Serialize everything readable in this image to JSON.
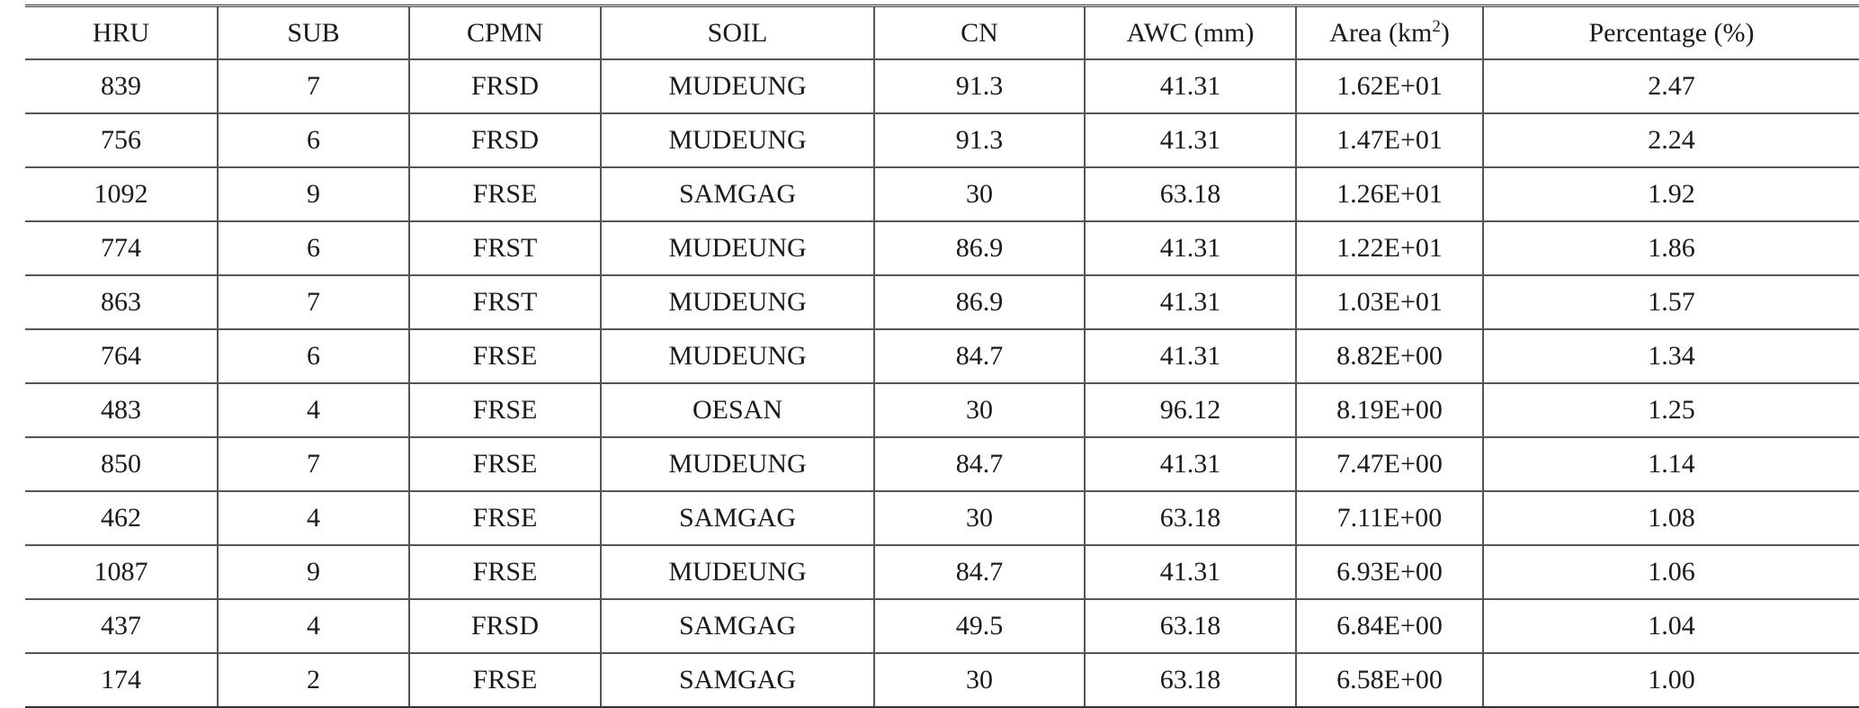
{
  "table": {
    "headers": {
      "hru": "HRU",
      "sub": "SUB",
      "cpmn": "CPMN",
      "soil": "SOIL",
      "cn": "CN",
      "awc": "AWC (mm)",
      "area_prefix": "Area (km",
      "area_sup": "2",
      "area_suffix": ")",
      "percentage": "Percentage (%)"
    },
    "rows": [
      [
        "839",
        "7",
        "FRSD",
        "MUDEUNG",
        "91.3",
        "41.31",
        "1.62E+01",
        "2.47"
      ],
      [
        "756",
        "6",
        "FRSD",
        "MUDEUNG",
        "91.3",
        "41.31",
        "1.47E+01",
        "2.24"
      ],
      [
        "1092",
        "9",
        "FRSE",
        "SAMGAG",
        "30",
        "63.18",
        "1.26E+01",
        "1.92"
      ],
      [
        "774",
        "6",
        "FRST",
        "MUDEUNG",
        "86.9",
        "41.31",
        "1.22E+01",
        "1.86"
      ],
      [
        "863",
        "7",
        "FRST",
        "MUDEUNG",
        "86.9",
        "41.31",
        "1.03E+01",
        "1.57"
      ],
      [
        "764",
        "6",
        "FRSE",
        "MUDEUNG",
        "84.7",
        "41.31",
        "8.82E+00",
        "1.34"
      ],
      [
        "483",
        "4",
        "FRSE",
        "OESAN",
        "30",
        "96.12",
        "8.19E+00",
        "1.25"
      ],
      [
        "850",
        "7",
        "FRSE",
        "MUDEUNG",
        "84.7",
        "41.31",
        "7.47E+00",
        "1.14"
      ],
      [
        "462",
        "4",
        "FRSE",
        "SAMGAG",
        "30",
        "63.18",
        "7.11E+00",
        "1.08"
      ],
      [
        "1087",
        "9",
        "FRSE",
        "MUDEUNG",
        "84.7",
        "41.31",
        "6.93E+00",
        "1.06"
      ],
      [
        "437",
        "4",
        "FRSD",
        "SAMGAG",
        "49.5",
        "63.18",
        "6.84E+00",
        "1.04"
      ],
      [
        "174",
        "2",
        "FRSE",
        "SAMGAG",
        "30",
        "63.18",
        "6.58E+00",
        "1.00"
      ]
    ]
  }
}
